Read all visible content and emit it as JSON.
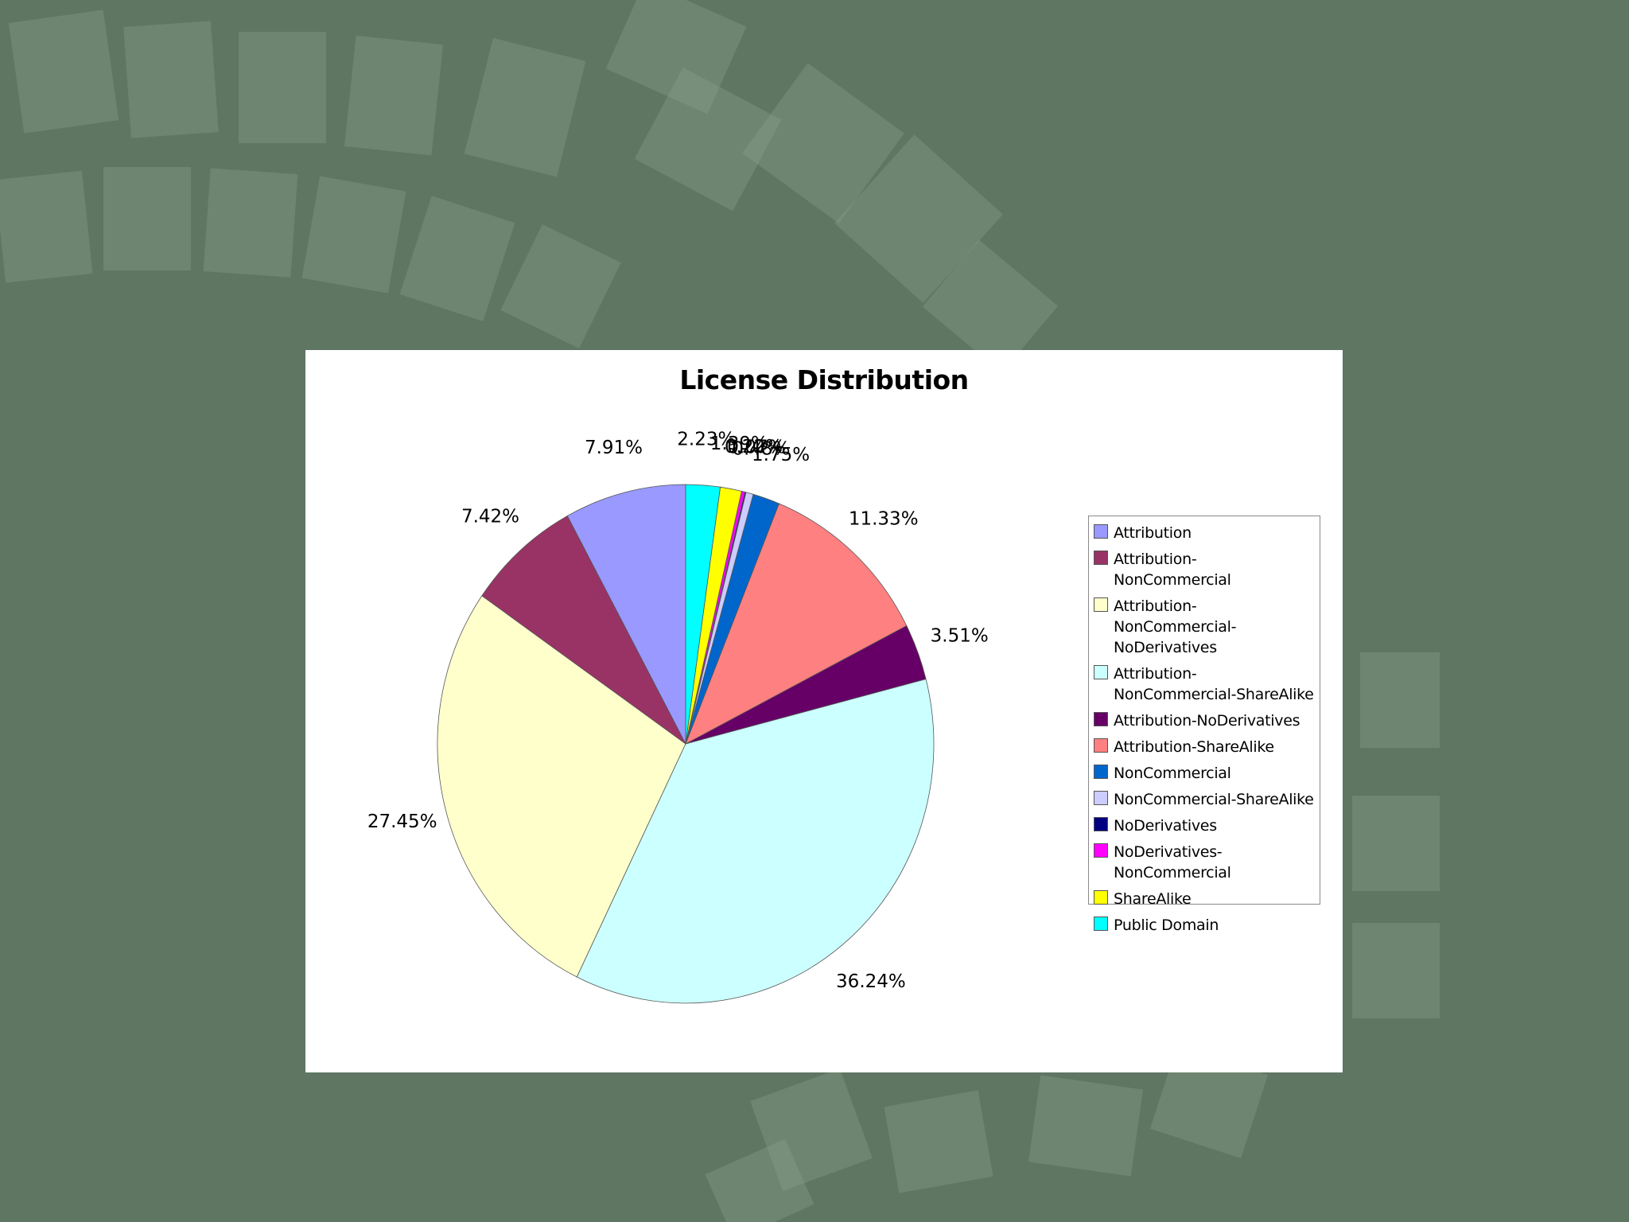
{
  "chart_data": {
    "type": "pie",
    "title": "License Distribution",
    "legend_position": "right",
    "slices": [
      {
        "name": "Attribution",
        "label": "7.91%",
        "value": 7.91,
        "color": "#9999ff"
      },
      {
        "name": "Attribution-NonCommercial",
        "label": "7.42%",
        "value": 7.42,
        "color": "#993366"
      },
      {
        "name": "Attribution-NonCommercial-NoDerivatives",
        "label": "27.45%",
        "value": 27.45,
        "color": "#ffffcc"
      },
      {
        "name": "Attribution-NonCommercial-ShareAlike",
        "label": "36.24%",
        "value": 36.24,
        "color": "#ccffff"
      },
      {
        "name": "Attribution-NoDerivatives",
        "label": "3.51%",
        "value": 3.51,
        "color": "#660066"
      },
      {
        "name": "Attribution-ShareAlike",
        "label": "11.33%",
        "value": 11.33,
        "color": "#ff8080"
      },
      {
        "name": "NonCommercial",
        "label": "1.75%",
        "value": 1.75,
        "color": "#0066cc"
      },
      {
        "name": "NonCommercial-ShareAlike",
        "label": "0.48%",
        "value": 0.48,
        "color": "#ccccff"
      },
      {
        "name": "NoDerivatives",
        "label": "0.07%",
        "value": 0.07,
        "color": "#000080"
      },
      {
        "name": "NoDerivatives-NonCommercial",
        "label": "0.22%",
        "value": 0.22,
        "color": "#ff00ff"
      },
      {
        "name": "ShareAlike",
        "label": "1.39%",
        "value": 1.39,
        "color": "#ffff00"
      },
      {
        "name": "Public Domain",
        "label": "2.23%",
        "value": 2.23,
        "color": "#00ffff"
      }
    ]
  },
  "legend": {
    "items": [
      {
        "text": "Attribution",
        "color": "#9999ff"
      },
      {
        "text": "Attribution-NonCommercial",
        "color": "#993366"
      },
      {
        "text": "Attribution-NonCommercial-NoDerivatives",
        "color": "#ffffcc"
      },
      {
        "text": "Attribution-NonCommercial-ShareAlike",
        "color": "#ccffff"
      },
      {
        "text": "Attribution-NoDerivatives",
        "color": "#660066"
      },
      {
        "text": "Attribution-ShareAlike",
        "color": "#ff8080"
      },
      {
        "text": "NonCommercial",
        "color": "#0066cc"
      },
      {
        "text": "NonCommercial-ShareAlike",
        "color": "#ccccff"
      },
      {
        "text": "NoDerivatives",
        "color": "#000080"
      },
      {
        "text": "NoDerivatives-NonCommercial",
        "color": "#ff00ff"
      },
      {
        "text": "ShareAlike",
        "color": "#ffff00"
      },
      {
        "text": "Public Domain",
        "color": "#00ffff"
      }
    ]
  },
  "colors": {
    "background": "#5e7662",
    "panel": "#ffffff"
  }
}
